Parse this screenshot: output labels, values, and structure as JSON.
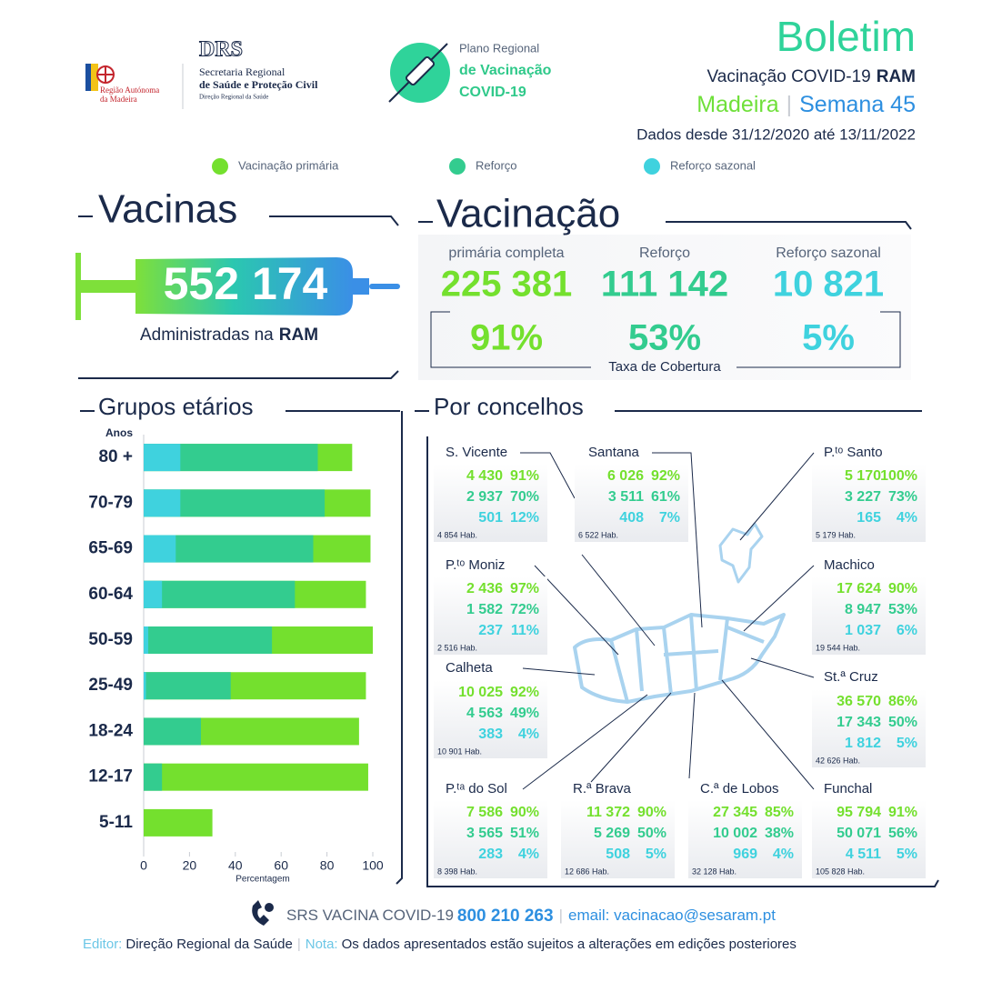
{
  "header": {
    "region": [
      "Região Autónoma",
      "da Madeira"
    ],
    "drs": "DRS",
    "secretaria": [
      "Secretaria Regional",
      "de Saúde e Proteção Civil"
    ],
    "direcao": "Direção Regional da Saúde",
    "plano": [
      "Plano Regional",
      "de Vacinação",
      "COVID-19"
    ],
    "title": "Boletim",
    "subtitle": "Vacinação COVID-19",
    "subtitle_bold": "RAM",
    "place": "Madeira",
    "week": "Semana 45",
    "period": "Dados desde 31/12/2020 até 13/11/2022"
  },
  "vacinas": {
    "title": "Vacinas",
    "total": "552 174",
    "caption": "Administradas na",
    "caption_bold": "RAM"
  },
  "vacinacao": {
    "title": "Vacinação",
    "items": [
      {
        "label": "primária completa",
        "count": "225 381",
        "coverage": "91%"
      },
      {
        "label": "Reforço",
        "count": "111 142",
        "coverage": "53%"
      },
      {
        "label": "Reforço sazonal",
        "count": "10 821",
        "coverage": "5%"
      }
    ],
    "coverage_label": "Taxa de Cobertura"
  },
  "concelhos": {
    "title": "Por concelhos",
    "items": [
      {
        "name": "S. Vicente",
        "rows": [
          [
            "4 430",
            "91%"
          ],
          [
            "2 937",
            "70%"
          ],
          [
            "501",
            "12%"
          ]
        ],
        "population": "4 854 Hab."
      },
      {
        "name": "Santana",
        "rows": [
          [
            "6 026",
            "92%"
          ],
          [
            "3 511",
            "61%"
          ],
          [
            "408",
            "7%"
          ]
        ],
        "population": "6 522 Hab."
      },
      {
        "name": "P.ᵗᵒ Santo",
        "rows": [
          [
            "5 170",
            "100%"
          ],
          [
            "3 227",
            "73%"
          ],
          [
            "165",
            "4%"
          ]
        ],
        "population": "5 179 Hab."
      },
      {
        "name": "P.ᵗᵒ Moniz",
        "rows": [
          [
            "2 436",
            "97%"
          ],
          [
            "1 582",
            "72%"
          ],
          [
            "237",
            "11%"
          ]
        ],
        "population": "2 516 Hab."
      },
      {
        "name": "Machico",
        "rows": [
          [
            "17 624",
            "90%"
          ],
          [
            "8 947",
            "53%"
          ],
          [
            "1 037",
            "6%"
          ]
        ],
        "population": "19 544 Hab."
      },
      {
        "name": "Calheta",
        "rows": [
          [
            "10 025",
            "92%"
          ],
          [
            "4 563",
            "49%"
          ],
          [
            "383",
            "4%"
          ]
        ],
        "population": "10 901 Hab."
      },
      {
        "name": "St.ª Cruz",
        "rows": [
          [
            "36 570",
            "86%"
          ],
          [
            "17 343",
            "50%"
          ],
          [
            "1 812",
            "5%"
          ]
        ],
        "population": "42 626 Hab."
      },
      {
        "name": "P.ᵗᵃ do Sol",
        "rows": [
          [
            "7 586",
            "90%"
          ],
          [
            "3 565",
            "51%"
          ],
          [
            "283",
            "4%"
          ]
        ],
        "population": "8 398 Hab."
      },
      {
        "name": "R.ª Brava",
        "rows": [
          [
            "11 372",
            "90%"
          ],
          [
            "5 269",
            "50%"
          ],
          [
            "508",
            "5%"
          ]
        ],
        "population": "12 686 Hab."
      },
      {
        "name": "C.ª de Lobos",
        "rows": [
          [
            "27 345",
            "85%"
          ],
          [
            "10 002",
            "38%"
          ],
          [
            "969",
            "4%"
          ]
        ],
        "population": "32 128 Hab."
      },
      {
        "name": "Funchal",
        "rows": [
          [
            "95 794",
            "91%"
          ],
          [
            "50 071",
            "56%"
          ],
          [
            "4 511",
            "5%"
          ]
        ],
        "population": "105 828 Hab."
      }
    ]
  },
  "footer": {
    "line": "SRS VACINA COVID-19",
    "phone": "800 210 263",
    "email": "email: vacinacao@sesaram.pt",
    "editor_label": "Editor:",
    "editor": "Direção Regional da Saúde",
    "note_label": "Nota:",
    "note": "Os dados apresentados estão sujeitos a alterações em edições posteriores"
  },
  "chart_data": {
    "type": "bar",
    "orientation": "horizontal",
    "barmode": "overlay",
    "title": "Grupos etários",
    "y_label": "Anos",
    "x_label": "Percentagem",
    "categories": [
      "80 +",
      "70-79",
      "65-69",
      "60-64",
      "50-59",
      "25-49",
      "18-24",
      "12-17",
      "5-11"
    ],
    "series": [
      {
        "name": "Vacinação primária",
        "color": "#74e02e",
        "values": [
          91,
          99,
          99,
          97,
          100,
          97,
          94,
          98,
          30
        ]
      },
      {
        "name": "Reforço",
        "color": "#33cc8f",
        "values": [
          76,
          79,
          74,
          66,
          56,
          38,
          25,
          8,
          0
        ]
      },
      {
        "name": "Reforço sazonal",
        "color": "#3fd2de",
        "values": [
          16,
          16,
          14,
          8,
          2,
          1,
          0,
          0,
          0
        ]
      }
    ],
    "xlim": [
      0,
      100
    ],
    "xticks": [
      0,
      20,
      40,
      60,
      80,
      100
    ],
    "grid": false
  }
}
